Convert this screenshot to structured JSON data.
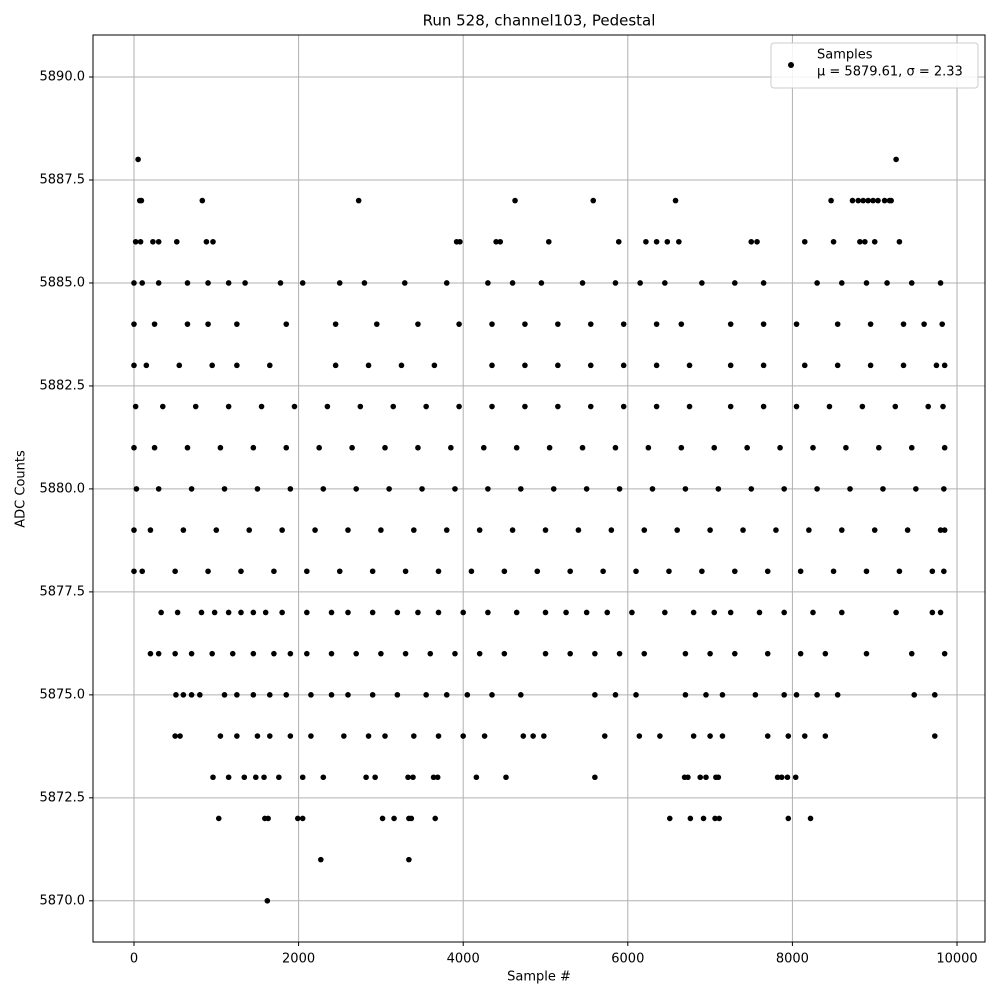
{
  "chart_data": {
    "type": "scatter",
    "title": "Run 528, channel103, Pedestal",
    "x_label": "Sample #",
    "y_label": "ADC Counts",
    "xlim": [
      -498,
      10340
    ],
    "ylim": [
      5869.0,
      5891.02
    ],
    "xticks": [
      0,
      2000,
      4000,
      6000,
      8000,
      10000
    ],
    "yticks": [
      {
        "value": 5870,
        "label": "5870.0"
      },
      {
        "value": 5872.5,
        "label": "5872.5"
      },
      {
        "value": 5875,
        "label": "5875.0"
      },
      {
        "value": 5877.5,
        "label": "5877.5"
      },
      {
        "value": 5880,
        "label": "5880.0"
      },
      {
        "value": 5882.5,
        "label": "5882.5"
      },
      {
        "value": 5885,
        "label": "5885.0"
      },
      {
        "value": 5887.5,
        "label": "5887.5"
      },
      {
        "value": 5890,
        "label": "5890.0"
      }
    ],
    "grid": true,
    "legend": "upper right",
    "legend_note": "μ = 5879.61, σ = 2.33",
    "x": [
      1620,
      2270,
      3340,
      1030,
      1590,
      1630,
      1990,
      2050,
      3020,
      3160,
      3340,
      3370,
      3660,
      6510,
      6760,
      6920,
      7060,
      7110,
      7950,
      8220,
      960,
      1150,
      1340,
      1480,
      1580,
      1760,
      2050,
      2300,
      2820,
      2930,
      3330,
      3390,
      3640,
      3690,
      4160,
      4520,
      5600,
      6690,
      6730,
      6880,
      6950,
      7070,
      7100,
      7820,
      7870,
      7940,
      8040,
      500,
      560,
      1050,
      1250,
      1500,
      1650,
      1900,
      2150,
      2550,
      2850,
      3050,
      3400,
      3700,
      4000,
      4260,
      4730,
      4850,
      4980,
      5720,
      6140,
      6390,
      6800,
      7000,
      7150,
      7700,
      7950,
      8150,
      8400,
      9730,
      510,
      600,
      700,
      800,
      1100,
      1250,
      1450,
      1650,
      1850,
      2150,
      2400,
      2600,
      2900,
      3200,
      3550,
      3800,
      4050,
      4350,
      4700,
      5600,
      5850,
      6100,
      6700,
      6950,
      7150,
      7550,
      7900,
      8050,
      8300,
      8550,
      9480,
      9730,
      200,
      300,
      500,
      700,
      950,
      1200,
      1450,
      1700,
      1900,
      2100,
      2400,
      2700,
      3000,
      3300,
      3600,
      3900,
      4200,
      4500,
      5000,
      5300,
      5600,
      5900,
      6200,
      6700,
      7000,
      7300,
      7700,
      8100,
      8400,
      8900,
      9450,
      9850,
      330,
      530,
      820,
      980,
      1150,
      1300,
      1450,
      1600,
      1800,
      2100,
      2400,
      2600,
      2900,
      3200,
      3450,
      3700,
      4000,
      4300,
      4650,
      5000,
      5250,
      5500,
      5750,
      6050,
      6450,
      6800,
      7050,
      7250,
      7600,
      7900,
      8250,
      8600,
      9260,
      9700,
      9800,
      0,
      100,
      500,
      900,
      1300,
      1700,
      2100,
      2500,
      2900,
      3300,
      3700,
      4100,
      4500,
      4900,
      5300,
      5700,
      6100,
      6500,
      6900,
      7300,
      7700,
      8100,
      8500,
      8900,
      9300,
      9700,
      9840,
      0,
      200,
      600,
      1000,
      1400,
      1800,
      2200,
      2600,
      3000,
      3400,
      3800,
      4200,
      4600,
      5000,
      5400,
      5800,
      6200,
      6600,
      7000,
      7400,
      7800,
      8200,
      8600,
      9000,
      9400,
      9800,
      9850,
      30,
      300,
      700,
      1100,
      1500,
      1900,
      2300,
      2700,
      3100,
      3500,
      3900,
      4300,
      4700,
      5100,
      5500,
      5900,
      6300,
      6700,
      7100,
      7500,
      7900,
      8300,
      8700,
      9100,
      9500,
      9840,
      0,
      250,
      650,
      1050,
      1450,
      1850,
      2250,
      2650,
      3050,
      3450,
      3850,
      4250,
      4650,
      5050,
      5450,
      5850,
      6250,
      6650,
      7050,
      7450,
      7850,
      8250,
      8650,
      9050,
      9450,
      9850,
      20,
      350,
      750,
      1150,
      1550,
      1950,
      2350,
      2750,
      3150,
      3550,
      3950,
      4350,
      4750,
      5150,
      5550,
      5950,
      6350,
      6750,
      7250,
      7650,
      8050,
      8450,
      8850,
      9250,
      9650,
      9830,
      0,
      150,
      550,
      950,
      1250,
      1650,
      2450,
      2850,
      3250,
      3650,
      4350,
      4750,
      5150,
      5550,
      5950,
      6350,
      6750,
      7250,
      7650,
      8150,
      8550,
      8950,
      9350,
      9750,
      9850,
      0,
      250,
      650,
      900,
      1250,
      1850,
      2450,
      2950,
      3450,
      3950,
      4350,
      4750,
      5150,
      5550,
      5950,
      6350,
      6650,
      7250,
      7650,
      8050,
      8550,
      8950,
      9350,
      9600,
      9820,
      0,
      100,
      300,
      650,
      900,
      1150,
      1350,
      1780,
      2050,
      2500,
      2800,
      3290,
      3800,
      4300,
      4600,
      4950,
      5450,
      5850,
      6150,
      6450,
      6900,
      7300,
      7650,
      8300,
      8600,
      8900,
      9150,
      9450,
      9800,
      20,
      80,
      230,
      300,
      520,
      880,
      960,
      3920,
      3960,
      4400,
      4450,
      5040,
      5890,
      6220,
      6350,
      6480,
      6620,
      7500,
      7570,
      8150,
      8500,
      8820,
      8880,
      9000,
      9300,
      70,
      90,
      830,
      2730,
      4630,
      5580,
      6580,
      8470,
      8730,
      8800,
      8860,
      8920,
      8980,
      9040,
      9120,
      9180,
      9200,
      50,
      9260
    ],
    "series": [
      {
        "name": "Samples",
        "color": "#000000",
        "values": [
          5870,
          5871,
          5871,
          5872,
          5872,
          5872,
          5872,
          5872,
          5872,
          5872,
          5872,
          5872,
          5872,
          5872,
          5872,
          5872,
          5872,
          5872,
          5872,
          5872,
          5873,
          5873,
          5873,
          5873,
          5873,
          5873,
          5873,
          5873,
          5873,
          5873,
          5873,
          5873,
          5873,
          5873,
          5873,
          5873,
          5873,
          5873,
          5873,
          5873,
          5873,
          5873,
          5873,
          5873,
          5873,
          5873,
          5873,
          5874,
          5874,
          5874,
          5874,
          5874,
          5874,
          5874,
          5874,
          5874,
          5874,
          5874,
          5874,
          5874,
          5874,
          5874,
          5874,
          5874,
          5874,
          5874,
          5874,
          5874,
          5874,
          5874,
          5874,
          5874,
          5874,
          5874,
          5874,
          5874,
          5875,
          5875,
          5875,
          5875,
          5875,
          5875,
          5875,
          5875,
          5875,
          5875,
          5875,
          5875,
          5875,
          5875,
          5875,
          5875,
          5875,
          5875,
          5875,
          5875,
          5875,
          5875,
          5875,
          5875,
          5875,
          5875,
          5875,
          5875,
          5875,
          5875,
          5875,
          5875,
          5876,
          5876,
          5876,
          5876,
          5876,
          5876,
          5876,
          5876,
          5876,
          5876,
          5876,
          5876,
          5876,
          5876,
          5876,
          5876,
          5876,
          5876,
          5876,
          5876,
          5876,
          5876,
          5876,
          5876,
          5876,
          5876,
          5876,
          5876,
          5876,
          5876,
          5876,
          5876,
          5877,
          5877,
          5877,
          5877,
          5877,
          5877,
          5877,
          5877,
          5877,
          5877,
          5877,
          5877,
          5877,
          5877,
          5877,
          5877,
          5877,
          5877,
          5877,
          5877,
          5877,
          5877,
          5877,
          5877,
          5877,
          5877,
          5877,
          5877,
          5877,
          5877,
          5877,
          5877,
          5877,
          5877,
          5877,
          5878,
          5878,
          5878,
          5878,
          5878,
          5878,
          5878,
          5878,
          5878,
          5878,
          5878,
          5878,
          5878,
          5878,
          5878,
          5878,
          5878,
          5878,
          5878,
          5878,
          5878,
          5878,
          5878,
          5878,
          5878,
          5878,
          5878,
          5879,
          5879,
          5879,
          5879,
          5879,
          5879,
          5879,
          5879,
          5879,
          5879,
          5879,
          5879,
          5879,
          5879,
          5879,
          5879,
          5879,
          5879,
          5879,
          5879,
          5879,
          5879,
          5879,
          5879,
          5879,
          5879,
          5879,
          5880,
          5880,
          5880,
          5880,
          5880,
          5880,
          5880,
          5880,
          5880,
          5880,
          5880,
          5880,
          5880,
          5880,
          5880,
          5880,
          5880,
          5880,
          5880,
          5880,
          5880,
          5880,
          5880,
          5880,
          5880,
          5880,
          5881,
          5881,
          5881,
          5881,
          5881,
          5881,
          5881,
          5881,
          5881,
          5881,
          5881,
          5881,
          5881,
          5881,
          5881,
          5881,
          5881,
          5881,
          5881,
          5881,
          5881,
          5881,
          5881,
          5881,
          5881,
          5881,
          5882,
          5882,
          5882,
          5882,
          5882,
          5882,
          5882,
          5882,
          5882,
          5882,
          5882,
          5882,
          5882,
          5882,
          5882,
          5882,
          5882,
          5882,
          5882,
          5882,
          5882,
          5882,
          5882,
          5882,
          5882,
          5882,
          5883,
          5883,
          5883,
          5883,
          5883,
          5883,
          5883,
          5883,
          5883,
          5883,
          5883,
          5883,
          5883,
          5883,
          5883,
          5883,
          5883,
          5883,
          5883,
          5883,
          5883,
          5883,
          5883,
          5883,
          5883,
          5884,
          5884,
          5884,
          5884,
          5884,
          5884,
          5884,
          5884,
          5884,
          5884,
          5884,
          5884,
          5884,
          5884,
          5884,
          5884,
          5884,
          5884,
          5884,
          5884,
          5884,
          5884,
          5884,
          5884,
          5884,
          5885,
          5885,
          5885,
          5885,
          5885,
          5885,
          5885,
          5885,
          5885,
          5885,
          5885,
          5885,
          5885,
          5885,
          5885,
          5885,
          5885,
          5885,
          5885,
          5885,
          5885,
          5885,
          5885,
          5885,
          5885,
          5885,
          5885,
          5885,
          5885,
          5886,
          5886,
          5886,
          5886,
          5886,
          5886,
          5886,
          5886,
          5886,
          5886,
          5886,
          5886,
          5886,
          5886,
          5886,
          5886,
          5886,
          5886,
          5886,
          5886,
          5886,
          5886,
          5886,
          5886,
          5886,
          5887,
          5887,
          5887,
          5887,
          5887,
          5887,
          5887,
          5887,
          5887,
          5887,
          5887,
          5887,
          5887,
          5887,
          5887,
          5887,
          5887,
          5888,
          5888
        ]
      }
    ]
  }
}
